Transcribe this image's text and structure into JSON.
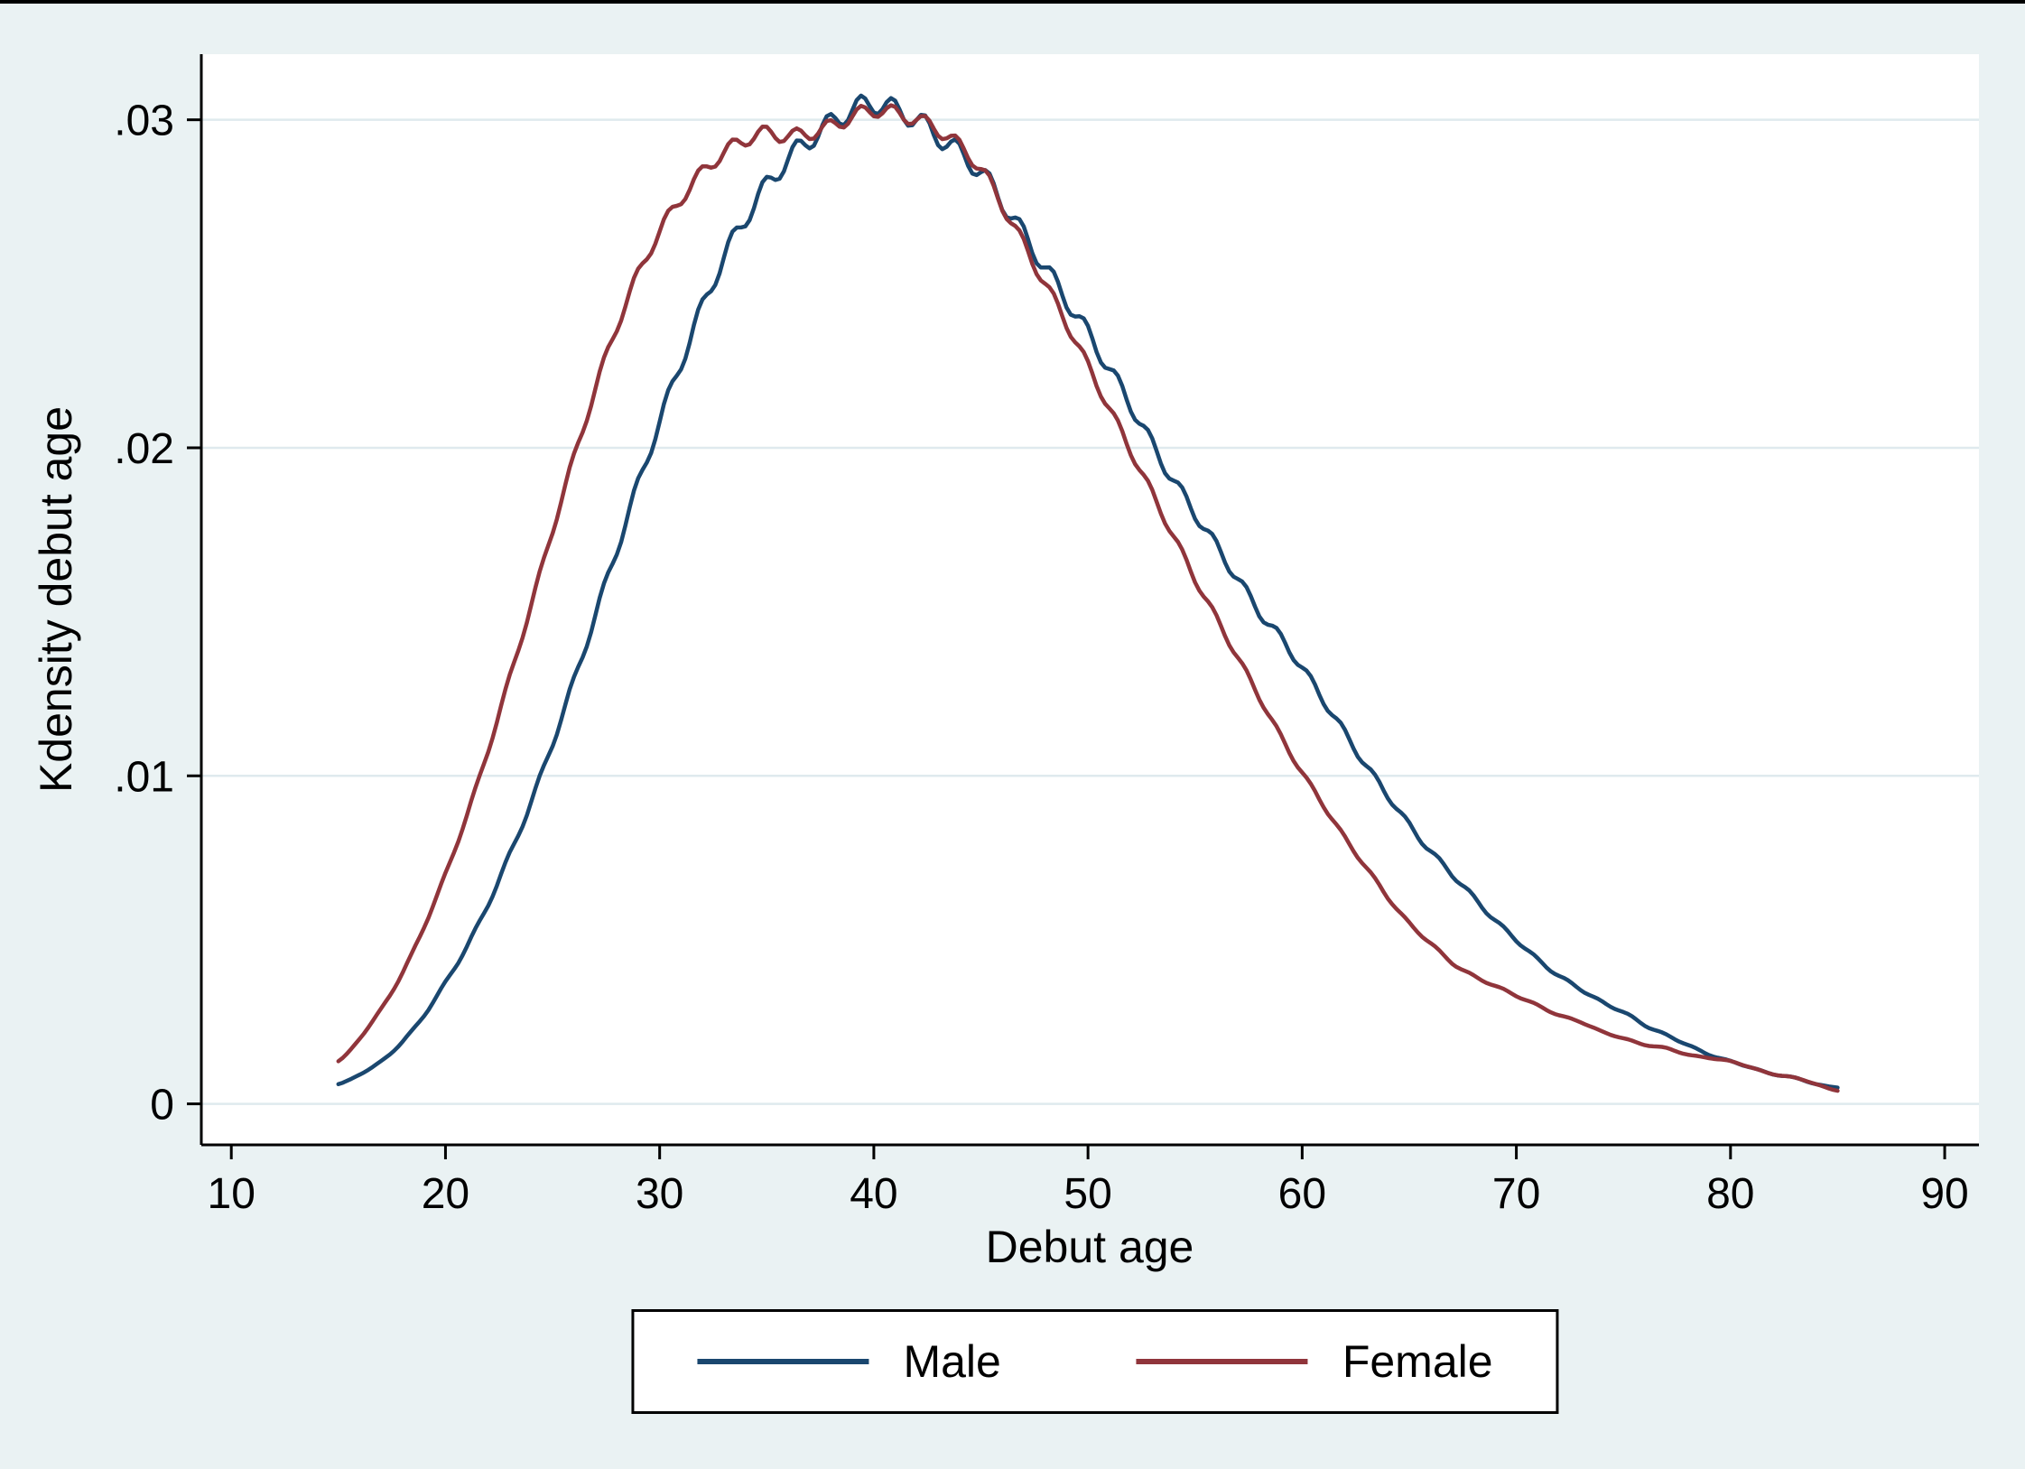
{
  "figure": {
    "background": "#eaf2f3",
    "plot_background": "#ffffff",
    "grid_color": "#dfeaee",
    "axis_color": "#000000",
    "text_color": "#000000"
  },
  "chart_data": {
    "type": "line",
    "title": "",
    "xlabel": "Debut age",
    "ylabel": "Kdensity debut age",
    "xlim": [
      8.6,
      91.6
    ],
    "ylim": [
      -0.00125,
      0.032
    ],
    "grid": "horizontal",
    "x_ticks": [
      10,
      20,
      30,
      40,
      50,
      60,
      70,
      80,
      90
    ],
    "y_ticks": [
      {
        "value": 0,
        "label": "0"
      },
      {
        "value": 0.01,
        "label": ".01"
      },
      {
        "value": 0.02,
        "label": ".02"
      },
      {
        "value": 0.03,
        "label": ".03"
      }
    ],
    "legend": {
      "position": "bottom",
      "entries": [
        "Male",
        "Female"
      ]
    },
    "x": [
      15,
      16,
      17,
      18,
      19,
      20,
      21,
      22,
      23,
      24,
      25,
      26,
      27,
      28,
      29,
      30,
      31,
      32,
      33,
      34,
      35,
      36,
      37,
      38,
      39,
      40,
      41,
      42,
      43,
      44,
      45,
      46,
      47,
      48,
      49,
      50,
      51,
      52,
      53,
      54,
      55,
      56,
      57,
      58,
      59,
      60,
      61,
      62,
      63,
      64,
      65,
      66,
      67,
      68,
      69,
      70,
      71,
      72,
      73,
      74,
      75,
      76,
      77,
      78,
      79,
      80,
      81,
      82,
      83,
      84,
      85
    ],
    "series": [
      {
        "name": "Male",
        "color": "#1a476f",
        "values": [
          0.0006,
          0.0009,
          0.0013,
          0.0019,
          0.0027,
          0.0037,
          0.0048,
          0.0061,
          0.0076,
          0.0092,
          0.011,
          0.0129,
          0.0149,
          0.0169,
          0.0189,
          0.0208,
          0.0226,
          0.0243,
          0.0258,
          0.027,
          0.028,
          0.0288,
          0.0294,
          0.0299,
          0.0303,
          0.0305,
          0.0303,
          0.03,
          0.0295,
          0.029,
          0.0284,
          0.0275,
          0.0265,
          0.0255,
          0.0245,
          0.0235,
          0.0224,
          0.0213,
          0.0201,
          0.019,
          0.018,
          0.017,
          0.016,
          0.015,
          0.0142,
          0.0133,
          0.0123,
          0.0113,
          0.0103,
          0.0094,
          0.0085,
          0.0077,
          0.007,
          0.0063,
          0.0056,
          0.005,
          0.0044,
          0.0039,
          0.0035,
          0.0031,
          0.0028,
          0.0024,
          0.0021,
          0.0018,
          0.0015,
          0.0013,
          0.0011,
          0.0009,
          0.0008,
          0.0006,
          0.0005
        ]
      },
      {
        "name": "Female",
        "color": "#90353b",
        "values": [
          0.0013,
          0.002,
          0.0029,
          0.004,
          0.0054,
          0.007,
          0.0088,
          0.0108,
          0.013,
          0.0152,
          0.0175,
          0.0197,
          0.0218,
          0.0237,
          0.0253,
          0.0266,
          0.0276,
          0.0284,
          0.029,
          0.0294,
          0.0296,
          0.0295,
          0.0296,
          0.0298,
          0.0301,
          0.0303,
          0.0302,
          0.03,
          0.0297,
          0.0292,
          0.0285,
          0.0274,
          0.0262,
          0.025,
          0.0238,
          0.0225,
          0.0212,
          0.0199,
          0.0186,
          0.0173,
          0.016,
          0.0148,
          0.0136,
          0.0124,
          0.0112,
          0.0101,
          0.0091,
          0.0081,
          0.0072,
          0.0063,
          0.0055,
          0.0049,
          0.0043,
          0.0039,
          0.0036,
          0.0033,
          0.003,
          0.0027,
          0.0025,
          0.0022,
          0.002,
          0.0018,
          0.0017,
          0.0015,
          0.0014,
          0.0013,
          0.0011,
          0.0009,
          0.0008,
          0.0006,
          0.0004
        ]
      }
    ],
    "style": {
      "wiggle_amplitude": [
        0.00032,
        0.00022
      ],
      "wiggle_period": 1.5,
      "line_width": 4.5
    }
  }
}
